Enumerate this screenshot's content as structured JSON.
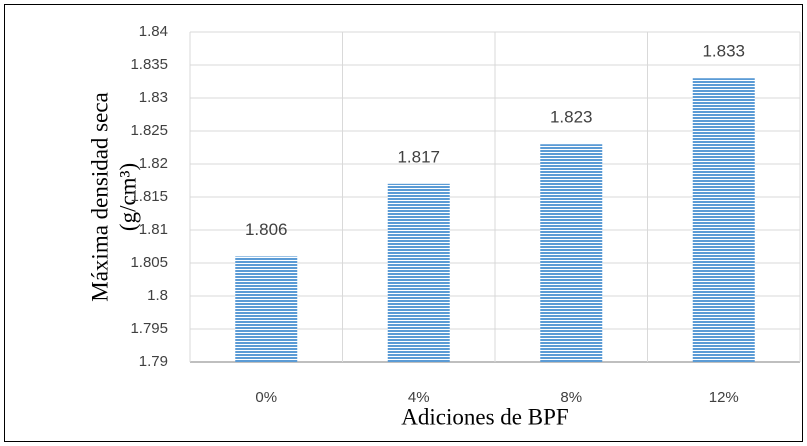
{
  "chart_data": {
    "type": "bar",
    "ylabel": [
      "Máxima densidad seca",
      "(g/cm³)"
    ],
    "xlabel": "Adiciones de BPF",
    "categories": [
      "0%",
      "4%",
      "8%",
      "12%"
    ],
    "values": [
      1.806,
      1.817,
      1.823,
      1.833
    ],
    "color": "#5b9bd5",
    "ylim": [
      1.79,
      1.84
    ],
    "yticks": [
      1.79,
      1.795,
      1.8,
      1.805,
      1.81,
      1.815,
      1.82,
      1.825,
      1.83,
      1.835,
      1.84
    ],
    "grid": true
  }
}
